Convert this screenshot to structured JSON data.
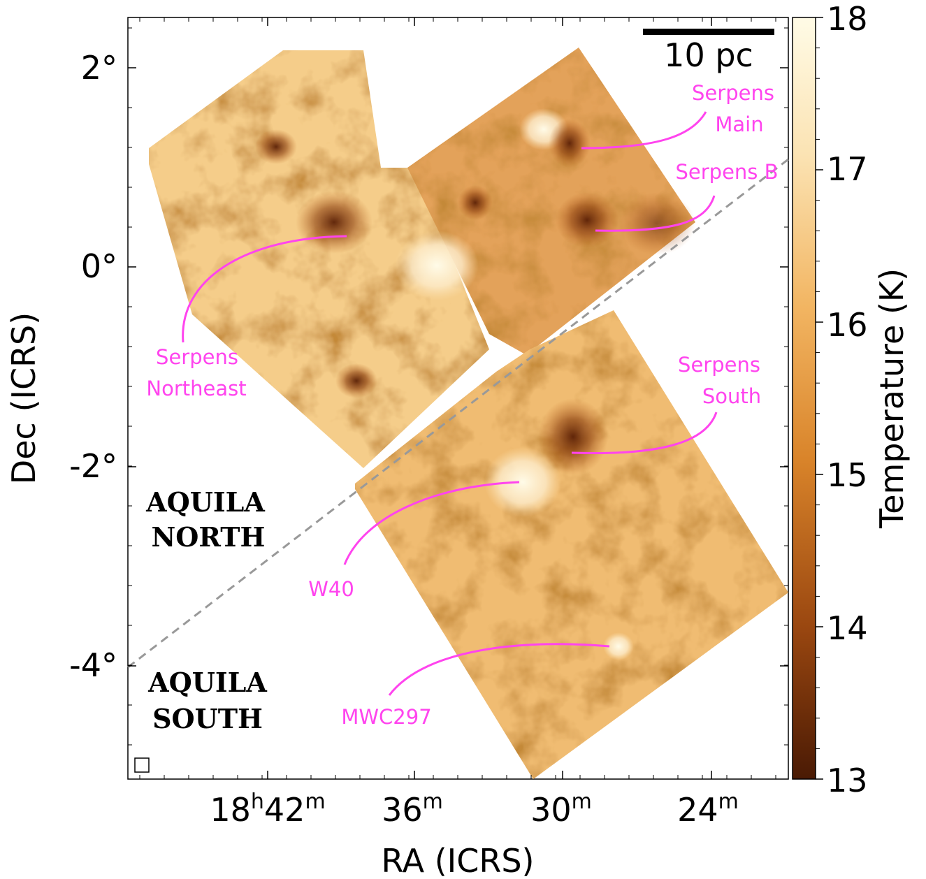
{
  "figure": {
    "x_axis": {
      "title": "RA (ICRS)",
      "ticks": [
        {
          "h": "18",
          "hs": "h",
          "m": "42",
          "ms": "m"
        },
        {
          "h": "",
          "hs": "",
          "m": "36",
          "ms": "m"
        },
        {
          "h": "",
          "hs": "",
          "m": "30",
          "ms": "m"
        },
        {
          "h": "",
          "hs": "",
          "m": "24",
          "ms": "m"
        }
      ]
    },
    "y_axis": {
      "title": "Dec (ICRS)",
      "ticks": [
        "2°",
        "0°",
        "-2°",
        "-4°"
      ]
    },
    "colorbar": {
      "title": "Temperature (K)",
      "ticks": [
        "18",
        "17",
        "16",
        "15",
        "14",
        "13"
      ],
      "min": 13,
      "max": 18,
      "colors": [
        "#4a1a04",
        "#9a4710",
        "#d9842a",
        "#f2b562",
        "#fbe3b3",
        "#fffbe6"
      ]
    },
    "scale_bar": {
      "label": "10 pc"
    },
    "regions": {
      "north": [
        "AQUILA",
        "NORTH"
      ],
      "south": [
        "AQUILA",
        "SOUTH"
      ]
    },
    "annotations": [
      {
        "name": "serpens-main",
        "lines": [
          "Serpens",
          "Main"
        ]
      },
      {
        "name": "serpens-b",
        "lines": [
          "Serpens B"
        ]
      },
      {
        "name": "serpens-northeast",
        "lines": [
          "Serpens",
          "Northeast"
        ]
      },
      {
        "name": "serpens-south",
        "lines": [
          "Serpens",
          "South"
        ]
      },
      {
        "name": "w40",
        "lines": [
          "W40"
        ]
      },
      {
        "name": "mwc297",
        "lines": [
          "MWC297"
        ]
      }
    ],
    "colors": {
      "annotation": "#ff44ee",
      "divider": "#999999"
    }
  }
}
